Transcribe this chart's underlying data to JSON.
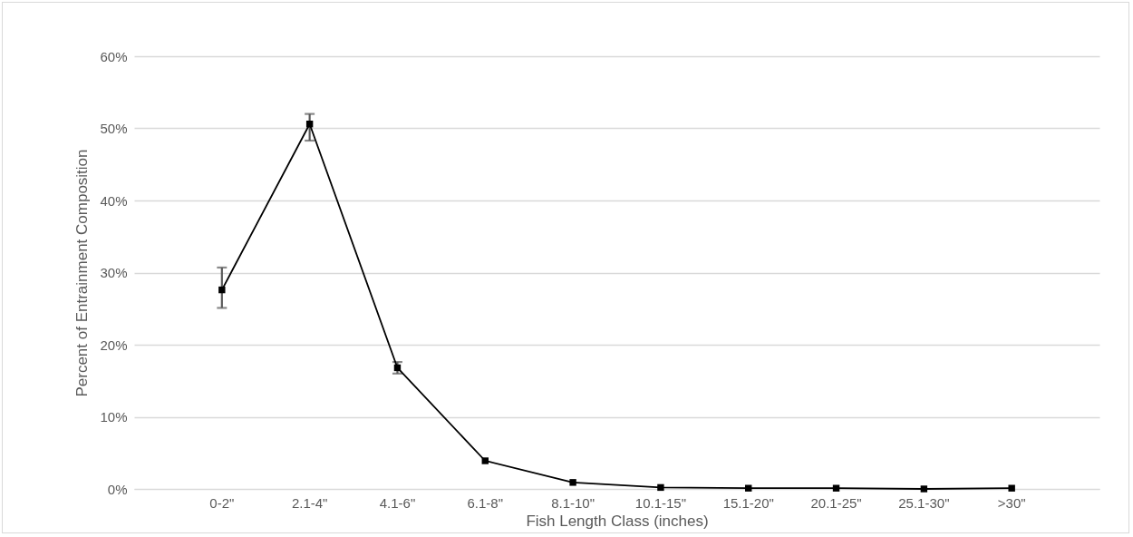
{
  "chart_data": {
    "type": "line",
    "xlabel": "Fish Length Class (inches)",
    "ylabel": "Percent of Entrainment Composition",
    "categories": [
      "0-2\"",
      "2.1-4\"",
      "4.1-6\"",
      "6.1-8\"",
      "8.1-10\"",
      "10.1-15\"",
      "15.1-20\"",
      "20.1-25\"",
      "25.1-30\"",
      ">30\""
    ],
    "series": [
      {
        "color": "#000000",
        "values": [
          27.6,
          50.6,
          16.8,
          3.9,
          0.9,
          0.2,
          0.1,
          0.1,
          0,
          0.1
        ],
        "errors": [
          [
            25.1,
            30.7
          ],
          [
            48.3,
            52.0
          ],
          [
            16.0,
            17.6
          ],
          null,
          null,
          null,
          null,
          null,
          null,
          null
        ]
      }
    ],
    "ylim": [
      0,
      60
    ],
    "yticks": [
      {
        "value": 0,
        "label": "0%"
      },
      {
        "value": 10,
        "label": "10%"
      },
      {
        "value": 20,
        "label": "20%"
      },
      {
        "value": 30,
        "label": "30%"
      },
      {
        "value": 40,
        "label": "40%"
      },
      {
        "value": 50,
        "label": "50%"
      },
      {
        "value": 60,
        "label": "60%"
      }
    ],
    "grid": "y",
    "marker": "square",
    "line_style": "solid"
  }
}
